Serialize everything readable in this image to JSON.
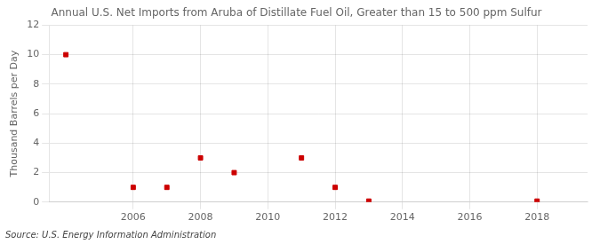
{
  "chart_data": {
    "type": "scatter",
    "title": "Annual U.S. Net Imports from Aruba of Distillate Fuel Oil, Greater than 15 to 500 ppm Sulfur",
    "ylabel": "Thousand Barrels per Day",
    "source": "Source: U.S. Energy Information Administration",
    "x": [
      2004,
      2006,
      2007,
      2008,
      2009,
      2011,
      2012,
      2013,
      2018
    ],
    "values": [
      10.0,
      1.0,
      1.0,
      3.0,
      2.0,
      3.0,
      1.0,
      0.07,
      0.07
    ],
    "color": "#cc0000",
    "marker": "square",
    "xlim": [
      2003.5,
      2019.5
    ],
    "xticks": [
      2006,
      2008,
      2010,
      2012,
      2014,
      2016,
      2018
    ],
    "ylim": [
      0,
      12
    ],
    "yticks": [
      0,
      2,
      4,
      6,
      8,
      10,
      12
    ],
    "grid": true
  }
}
